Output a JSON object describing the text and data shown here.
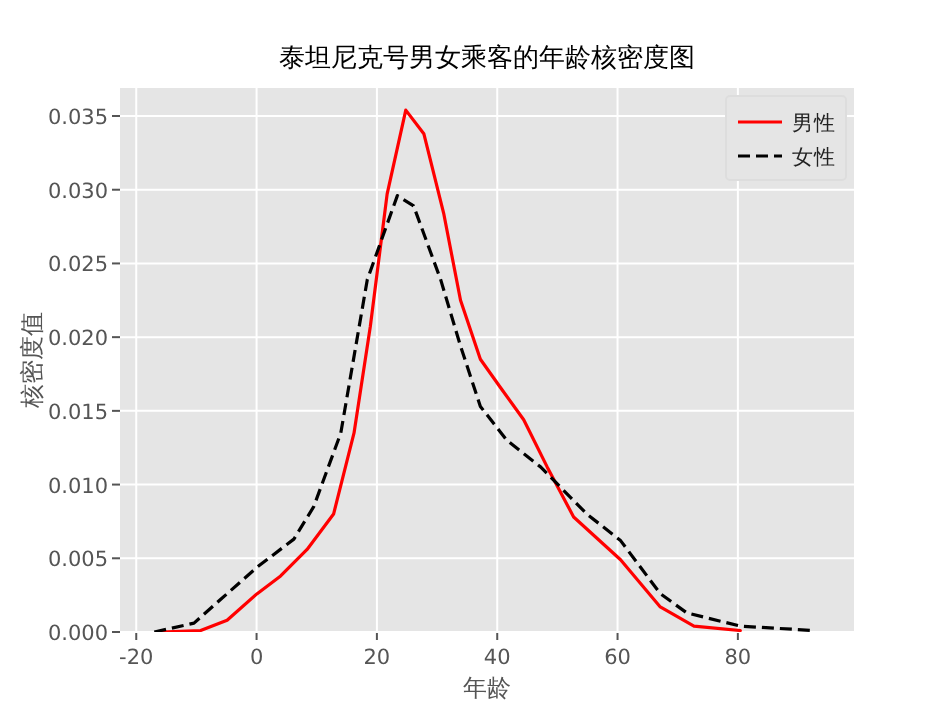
{
  "chart_data": {
    "type": "line",
    "title": "泰坦尼克号男女乘客的年龄核密度图",
    "xlabel": "年龄",
    "ylabel": "核密度值",
    "xlim": [
      -22.7,
      99.3
    ],
    "xticks": [
      -20,
      0,
      20,
      40,
      60,
      80
    ],
    "ylim": [
      0,
      0.0369
    ],
    "yticks": [
      {
        "value": 0,
        "label": "0.000"
      },
      {
        "value": 0.005,
        "label": "0.005"
      },
      {
        "value": 0.01,
        "label": "0.010"
      },
      {
        "value": 0.015,
        "label": "0.015"
      },
      {
        "value": 0.02,
        "label": "0.020"
      },
      {
        "value": 0.025,
        "label": "0.025"
      },
      {
        "value": 0.03,
        "label": "0.030"
      },
      {
        "value": 0.035,
        "label": "0.035"
      }
    ],
    "grid": true,
    "legend": "top right",
    "series": [
      {
        "name": "男性",
        "color": "#ff0000",
        "line_style": "solid",
        "x": [
          -16,
          -9.3,
          -4.9,
          0.1,
          4,
          8.4,
          12.8,
          16.2,
          18.9,
          21.7,
          24.8,
          27.8,
          31.1,
          33.9,
          37.2,
          40.5,
          44.4,
          48.3,
          52.7,
          60.5,
          67.1,
          72.7,
          80.4
        ],
        "values": [
          0,
          0.0001,
          0.0008,
          0.0026,
          0.0038,
          0.0056,
          0.008,
          0.0135,
          0.0207,
          0.0297,
          0.0354,
          0.0338,
          0.0284,
          0.0225,
          0.0185,
          0.0166,
          0.0144,
          0.0112,
          0.0078,
          0.0049,
          0.0017,
          0.0004,
          0.0001
        ]
      },
      {
        "name": "女性",
        "color": "#000000",
        "line_style": "dashed",
        "x": [
          -17,
          -10.4,
          -6,
          0.1,
          6.2,
          9.5,
          14,
          18.4,
          23.4,
          26.1,
          30.6,
          33.9,
          37.2,
          41.6,
          47.2,
          54.9,
          60.5,
          67.1,
          71.5,
          80.4,
          92.6
        ],
        "values": [
          0,
          0.0006,
          0.0022,
          0.0044,
          0.0063,
          0.0085,
          0.0135,
          0.0239,
          0.0296,
          0.0289,
          0.0239,
          0.0194,
          0.0153,
          0.013,
          0.0112,
          0.008,
          0.0062,
          0.0026,
          0.0013,
          0.0004,
          0.0001
        ]
      }
    ]
  }
}
